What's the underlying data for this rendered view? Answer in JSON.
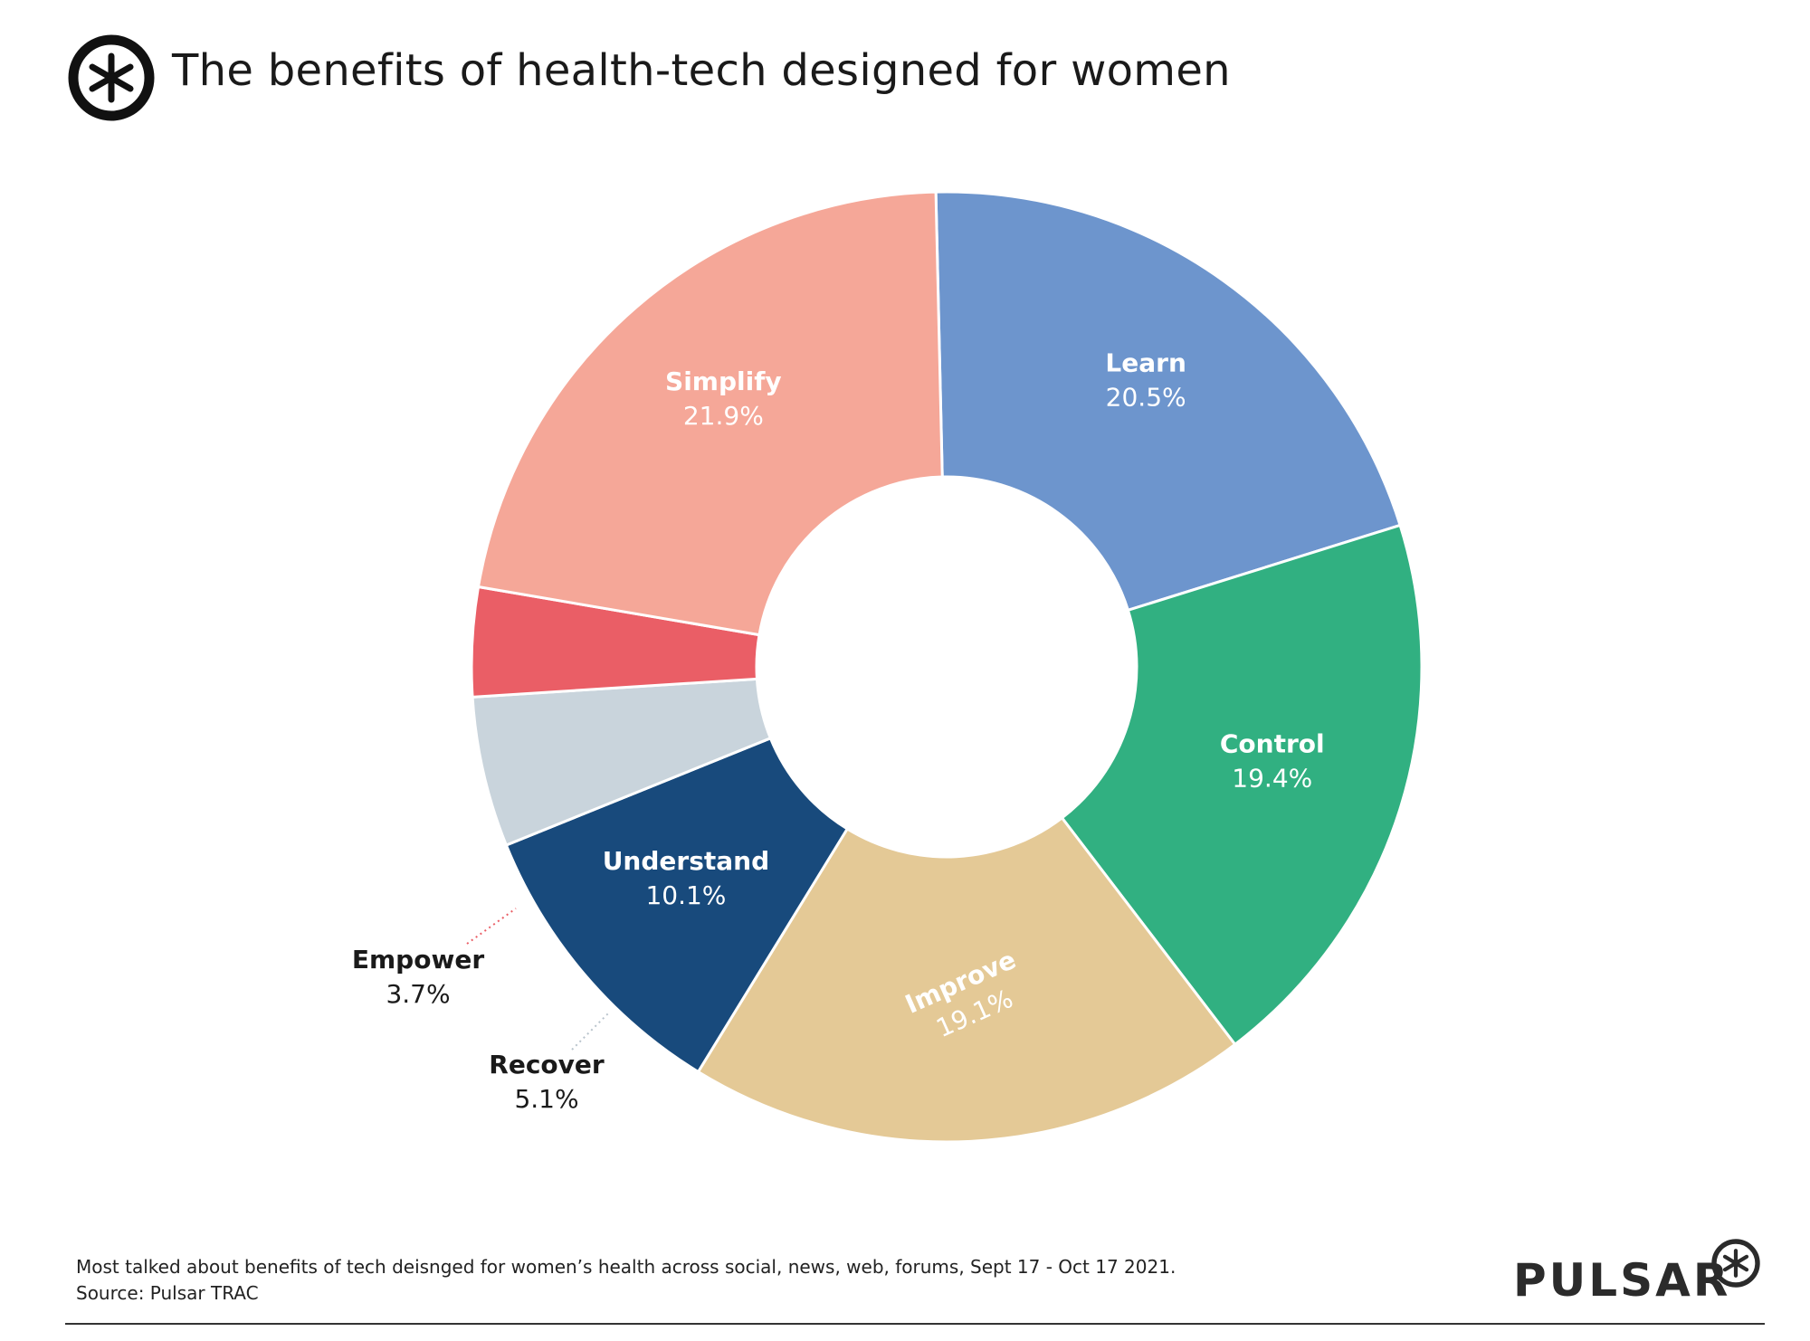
{
  "header": {
    "title": "The benefits of health-tech designed for women",
    "logo_icon": "asterisk-circle-icon"
  },
  "chart_data": {
    "type": "pie",
    "donut": true,
    "title": "The benefits of health-tech designed for women",
    "slices": [
      {
        "label": "Learn",
        "value": 20.5,
        "display": "20.5%",
        "color": "#6D95CD",
        "label_color": "#ffffff",
        "label_outside": false
      },
      {
        "label": "Control",
        "value": 19.4,
        "display": "19.4%",
        "color": "#31B081",
        "label_color": "#ffffff",
        "label_outside": false
      },
      {
        "label": "Improve",
        "value": 19.1,
        "display": "19.1%",
        "color": "#E4C996",
        "label_color": "#ffffff",
        "label_outside": false,
        "label_rotated": true
      },
      {
        "label": "Understand",
        "value": 10.1,
        "display": "10.1%",
        "color": "#184A7C",
        "label_color": "#ffffff",
        "label_outside": false
      },
      {
        "label": "Recover",
        "value": 5.1,
        "display": "5.1%",
        "color": "#C9D4DC",
        "label_color": "#1a1a1a",
        "label_outside": true
      },
      {
        "label": "Empower",
        "value": 3.7,
        "display": "3.7%",
        "color": "#EA5E66",
        "label_color": "#1a1a1a",
        "label_outside": true
      },
      {
        "label": "Simplify",
        "value": 21.9,
        "display": "21.9%",
        "color": "#F5A798",
        "label_color": "#ffffff",
        "label_outside": false
      }
    ]
  },
  "footer": {
    "note": "Most talked about benefits of tech deisnged for women’s health across social, news, web, forums, Sept 17 - Oct 17 2021.",
    "source": "Source: Pulsar TRAC",
    "brand": "PULSAR",
    "brand_icon": "asterisk-circle-icon"
  }
}
